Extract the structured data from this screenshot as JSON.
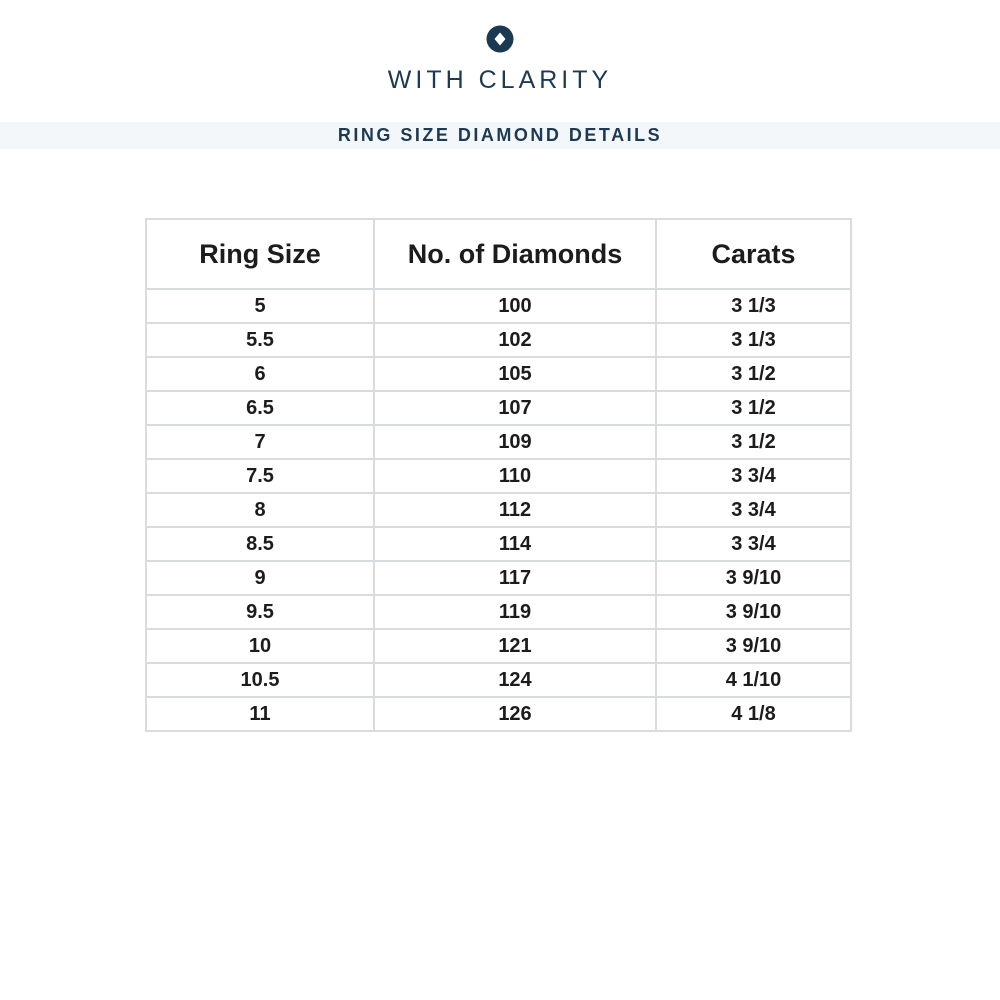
{
  "brand": {
    "name": "WITH CLARITY",
    "logo_icon": "diamond-in-circle-icon",
    "text_color": "#1d3a52",
    "logo_color": "#1b3950"
  },
  "banner": {
    "title": "RING SIZE DIAMOND DETAILS",
    "background_color": "#f4f7f9",
    "text_color": "#1d3a52"
  },
  "table": {
    "border_color": "#d9dcde",
    "headers": [
      "Ring Size",
      "No. of Diamonds",
      "Carats"
    ],
    "rows": [
      [
        "5",
        "100",
        "3 1/3"
      ],
      [
        "5.5",
        "102",
        "3 1/3"
      ],
      [
        "6",
        "105",
        "3 1/2"
      ],
      [
        "6.5",
        "107",
        "3 1/2"
      ],
      [
        "7",
        "109",
        "3 1/2"
      ],
      [
        "7.5",
        "110",
        "3 3/4"
      ],
      [
        "8",
        "112",
        "3 3/4"
      ],
      [
        "8.5",
        "114",
        "3 3/4"
      ],
      [
        "9",
        "117",
        "3 9/10"
      ],
      [
        "9.5",
        "119",
        "3 9/10"
      ],
      [
        "10",
        "121",
        "3 9/10"
      ],
      [
        "10.5",
        "124",
        "4 1/10"
      ],
      [
        "11",
        "126",
        "4 1/8"
      ]
    ]
  }
}
